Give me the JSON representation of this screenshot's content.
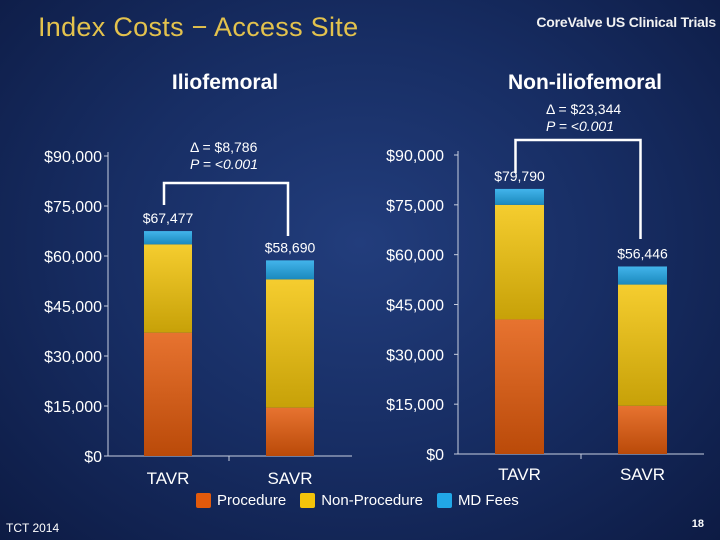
{
  "slide": {
    "title": "Index Costs − Access Site",
    "brand": "CoreValve US Clinical Trials",
    "footer_left": "TCT 2014",
    "page_number": "18"
  },
  "colors": {
    "procedure": "#e35a0b",
    "non_procedure": "#f3c40a",
    "md_fees": "#21a7e7"
  },
  "legend": [
    {
      "key": "procedure",
      "label": "Procedure"
    },
    {
      "key": "non_procedure",
      "label": "Non-Procedure"
    },
    {
      "key": "md_fees",
      "label": "MD Fees"
    }
  ],
  "chart_data": [
    {
      "type": "bar",
      "stacked": true,
      "title": "Iliofemoral",
      "categories": [
        "TAVR",
        "SAVR"
      ],
      "ylim": [
        0,
        90000
      ],
      "yticks": [
        "$0",
        "$15,000",
        "$30,000",
        "$45,000",
        "$60,000",
        "$75,000",
        "$90,000"
      ],
      "ytick_values": [
        0,
        15000,
        30000,
        45000,
        60000,
        75000,
        90000
      ],
      "series": [
        {
          "name": "Procedure",
          "key": "procedure",
          "values": [
            37000,
            14500
          ]
        },
        {
          "name": "Non-Procedure",
          "key": "non_procedure",
          "values": [
            26500,
            38500
          ]
        },
        {
          "name": "MD Fees",
          "key": "md_fees",
          "values": [
            3977,
            5690
          ]
        }
      ],
      "totals": [
        67477,
        58690
      ],
      "total_labels": [
        "$67,477",
        "$58,690"
      ],
      "annotation": {
        "delta": "Δ = $8,786",
        "p": "P = <0.001"
      }
    },
    {
      "type": "bar",
      "stacked": true,
      "title": "Non-iliofemoral",
      "categories": [
        "TAVR",
        "SAVR"
      ],
      "ylim": [
        0,
        90000
      ],
      "yticks": [
        "$0",
        "$15,000",
        "$30,000",
        "$45,000",
        "$60,000",
        "$75,000",
        "$90,000"
      ],
      "ytick_values": [
        0,
        15000,
        30000,
        45000,
        60000,
        75000,
        90000
      ],
      "series": [
        {
          "name": "Procedure",
          "key": "procedure",
          "values": [
            40500,
            14500
          ]
        },
        {
          "name": "Non-Procedure",
          "key": "non_procedure",
          "values": [
            34500,
            36500
          ]
        },
        {
          "name": "MD Fees",
          "key": "md_fees",
          "values": [
            4790,
            5446
          ]
        }
      ],
      "totals": [
        79790,
        56446
      ],
      "total_labels": [
        "$79,790",
        "$56,446"
      ],
      "annotation": {
        "delta": "Δ = $23,344",
        "p": "P = <0.001"
      }
    }
  ]
}
